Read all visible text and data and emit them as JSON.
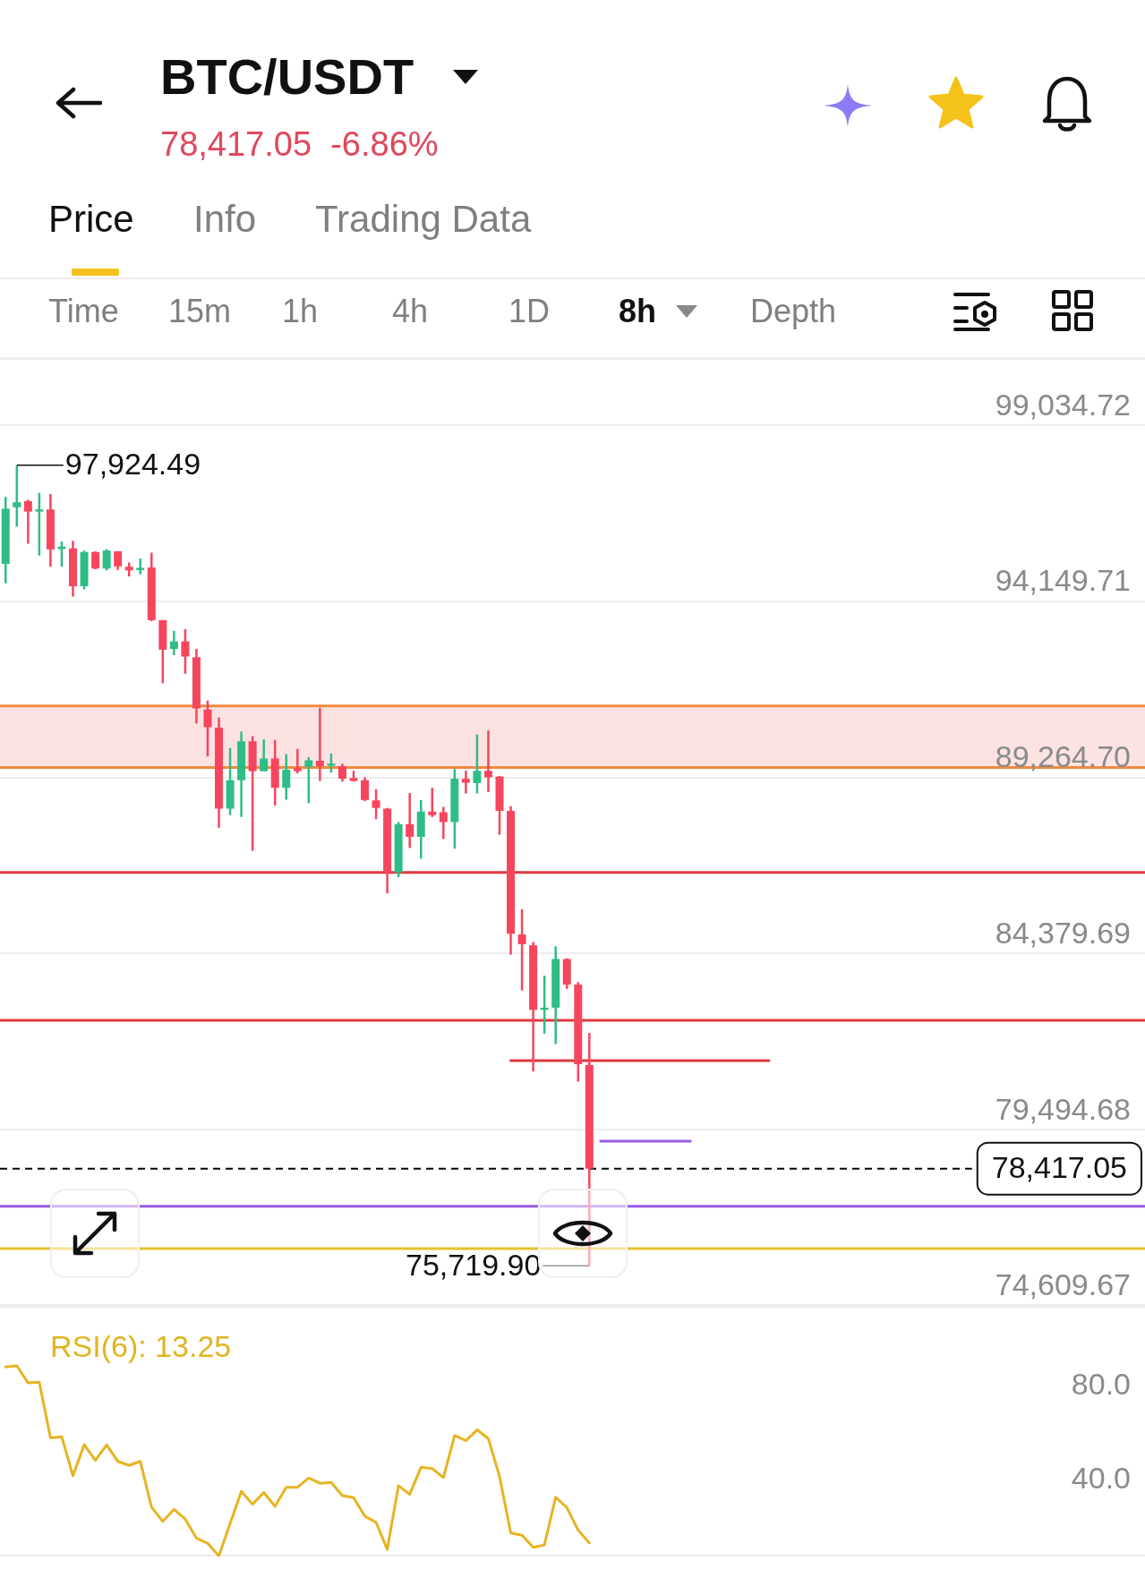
{
  "chart_data": [
    {
      "type": "candlestick",
      "title": "BTC/USDT",
      "subtitle": "78,417.05  -6.86%",
      "annotations": [
        "Price",
        "Info",
        "Trading Data",
        "Time",
        "15m",
        "1h",
        "4h",
        "1D",
        "8h",
        "Depth",
        "97,924.49",
        "75,719.90"
      ],
      "categories": [
        null,
        null,
        null,
        null,
        null,
        null,
        null,
        null,
        null,
        null,
        null,
        null,
        null,
        null,
        null,
        null,
        null,
        null,
        null,
        null,
        null,
        null,
        null,
        null,
        null,
        null,
        null,
        null,
        null,
        null,
        null,
        null,
        null,
        null,
        null,
        null,
        null,
        null,
        null,
        null,
        null,
        null,
        null,
        null,
        null,
        null,
        null,
        null,
        null,
        null,
        null,
        null,
        null,
        null,
        null,
        null,
        null,
        null,
        null,
        null,
        null,
        null,
        null,
        null,
        null,
        null,
        null,
        null,
        null,
        null,
        null,
        null,
        null,
        null,
        null,
        null,
        null,
        null,
        null,
        null,
        null,
        null,
        null,
        null,
        null,
        null,
        null,
        null,
        null,
        null,
        null,
        null,
        null,
        null,
        null,
        null,
        null,
        null,
        null,
        null,
        null,
        null
      ],
      "ohlc": [
        [
          95190,
          97050,
          94650,
          96720
        ],
        [
          96760,
          97924.49,
          96220,
          96900
        ],
        [
          96930,
          96970,
          95750,
          96640
        ],
        [
          96640,
          97160,
          95420,
          96700
        ],
        [
          96700,
          97130,
          95110,
          95590
        ],
        [
          95600,
          95810,
          95110,
          95670
        ],
        [
          95620,
          95830,
          94280,
          94570
        ],
        [
          94570,
          95560,
          94480,
          95520
        ],
        [
          95520,
          95540,
          95040,
          95060
        ],
        [
          95060,
          95600,
          95010,
          95560
        ],
        [
          95540,
          95540,
          95020,
          95120
        ],
        [
          95110,
          95230,
          94840,
          95010
        ],
        [
          95020,
          95340,
          94900,
          95080
        ],
        [
          95090,
          95500,
          93600,
          93630
        ],
        [
          93630,
          93630,
          91880,
          92810
        ],
        [
          92830,
          93330,
          92660,
          93040
        ],
        [
          93040,
          93380,
          92140,
          92620
        ],
        [
          92600,
          92830,
          90760,
          91180
        ],
        [
          91150,
          91400,
          89850,
          90660
        ],
        [
          90650,
          90930,
          87870,
          88400
        ],
        [
          88400,
          90080,
          88220,
          89190
        ],
        [
          89190,
          90540,
          88170,
          90270
        ],
        [
          90270,
          90410,
          87230,
          89440
        ],
        [
          89440,
          90320,
          89440,
          89790
        ],
        [
          89790,
          90310,
          88490,
          88980
        ],
        [
          88980,
          89910,
          88650,
          89480
        ],
        [
          89520,
          90060,
          89380,
          89440
        ],
        [
          89560,
          89830,
          88550,
          89740
        ],
        [
          89730,
          91200,
          89170,
          89580
        ],
        [
          89590,
          89930,
          89400,
          89650
        ],
        [
          89580,
          89650,
          89150,
          89230
        ],
        [
          89250,
          89450,
          89150,
          89170
        ],
        [
          89190,
          89270,
          88610,
          88640
        ],
        [
          88630,
          88940,
          88110,
          88420
        ],
        [
          88400,
          88420,
          86050,
          86630
        ],
        [
          86630,
          88030,
          86500,
          87970
        ],
        [
          87970,
          88830,
          87310,
          87620
        ],
        [
          87620,
          88640,
          87010,
          88320
        ],
        [
          88320,
          88980,
          88170,
          88220
        ],
        [
          88300,
          88450,
          87560,
          88030
        ],
        [
          88030,
          89500,
          87290,
          89230
        ],
        [
          89230,
          89460,
          88820,
          89120
        ],
        [
          89110,
          90460,
          88820,
          89450
        ],
        [
          89450,
          90570,
          88860,
          89270
        ],
        [
          89290,
          89310,
          87680,
          88340
        ],
        [
          88340,
          88470,
          84350,
          84930
        ],
        [
          84910,
          85610,
          83360,
          84640
        ],
        [
          84610,
          84700,
          81110,
          82820
        ],
        [
          82820,
          83770,
          82160,
          82880
        ],
        [
          82880,
          84580,
          81870,
          84230
        ],
        [
          84230,
          84250,
          83400,
          83520
        ],
        [
          83520,
          83590,
          80830,
          81310
        ],
        [
          81290,
          82180,
          75719.9,
          78417.05
        ],
        null,
        null,
        null,
        null,
        null,
        null,
        null,
        null,
        null,
        null,
        null,
        null,
        null,
        null,
        null,
        null,
        null,
        null,
        null,
        null,
        null,
        null,
        null,
        null,
        null,
        null,
        null,
        null,
        null,
        null,
        null,
        null,
        null,
        null,
        null,
        null,
        null,
        null,
        null,
        null,
        null,
        null,
        null,
        null,
        null,
        null,
        null,
        null,
        null
      ],
      "colors": [
        "#2ebd85",
        "#2ebd85",
        "#f6465d",
        "#2ebd85",
        "#f6465d",
        "#2ebd85",
        "#f6465d",
        "#2ebd85",
        "#f6465d",
        "#2ebd85",
        "#f6465d",
        "#f6465d",
        "#2ebd85",
        "#f6465d",
        "#f6465d",
        "#2ebd85",
        "#f6465d",
        "#f6465d",
        "#f6465d",
        "#f6465d",
        "#2ebd85",
        "#2ebd85",
        "#f6465d",
        "#2ebd85",
        "#f6465d",
        "#2ebd85",
        "#f6465d",
        "#2ebd85",
        "#f6465d",
        "#2ebd85",
        "#f6465d",
        "#f6465d",
        "#f6465d",
        "#f6465d",
        "#f6465d",
        "#2ebd85",
        "#f6465d",
        "#2ebd85",
        "#f6465d",
        "#f6465d",
        "#2ebd85",
        "#f6465d",
        "#2ebd85",
        "#f6465d",
        "#f6465d",
        "#f6465d",
        "#f6465d",
        "#f6465d",
        "#2ebd85",
        "#2ebd85",
        "#f6465d",
        "#f6465d",
        "#f6465d",
        null,
        null,
        null,
        null,
        null,
        null,
        null,
        null,
        null,
        null,
        null,
        null,
        null,
        null,
        null,
        null,
        null,
        null,
        null,
        null,
        null,
        null,
        null,
        null,
        null,
        null,
        null,
        null,
        null,
        null,
        null,
        null,
        null,
        null,
        null,
        null,
        null,
        null,
        null,
        null,
        null,
        null,
        null,
        null,
        null,
        null,
        null,
        null,
        null
      ],
      "series": [
        {
          "type": "line",
          "color": "#e0393e",
          "values": [
            null,
            null,
            null,
            null,
            null,
            null,
            null,
            null,
            null,
            null,
            null,
            null,
            null,
            null,
            null,
            null,
            null,
            null,
            null,
            null,
            null,
            null,
            null,
            null,
            null,
            null,
            null,
            null,
            null,
            null,
            null,
            null,
            null,
            null,
            null,
            null,
            null,
            null,
            null,
            null,
            null,
            null,
            null,
            null,
            null,
            81410,
            81410,
            81410,
            81410,
            81410,
            81410,
            81410,
            81410,
            81410,
            81410,
            81410,
            81410,
            81410,
            81410,
            81410,
            81410,
            81410,
            81410,
            81410,
            81410,
            81410,
            81410,
            81410,
            81410,
            null,
            null,
            null,
            null,
            null,
            null,
            null,
            null,
            null,
            null,
            null,
            null,
            null,
            null,
            null,
            null,
            null,
            null,
            null,
            null,
            null,
            null,
            null,
            null,
            null,
            null,
            null,
            null,
            null,
            null,
            null,
            null,
            null
          ]
        },
        {
          "type": "line",
          "color": "#9a5ce6",
          "values": [
            null,
            null,
            null,
            null,
            null,
            null,
            null,
            null,
            null,
            null,
            null,
            null,
            null,
            null,
            null,
            null,
            null,
            null,
            null,
            null,
            null,
            null,
            null,
            null,
            null,
            null,
            null,
            null,
            null,
            null,
            null,
            null,
            null,
            null,
            null,
            null,
            null,
            null,
            null,
            null,
            null,
            null,
            null,
            null,
            null,
            null,
            null,
            null,
            null,
            null,
            null,
            null,
            null,
            79180,
            79180,
            79180,
            79180,
            79180,
            79180,
            79180,
            79180,
            79180,
            null,
            null,
            null,
            null,
            null,
            null,
            null,
            null,
            null,
            null,
            null,
            null,
            null,
            null,
            null,
            null,
            null,
            null,
            null,
            null,
            null,
            null,
            null,
            null,
            null,
            null,
            null,
            null,
            null,
            null,
            null,
            null,
            null,
            null,
            null,
            null,
            null,
            null,
            null,
            null
          ]
        }
      ],
      "bands": [
        {
          "axis": "y",
          "from": 89540,
          "to": 91250,
          "color": "#fde2e2"
        }
      ],
      "ref_lines": [
        {
          "axis": "y",
          "value": 91250,
          "color": "#f08a3c"
        },
        {
          "axis": "y",
          "value": 89540,
          "color": "#f08a3c"
        },
        {
          "axis": "y",
          "value": 86630,
          "color": "#e0393e"
        },
        {
          "axis": "y",
          "value": 82530,
          "color": "#e0393e"
        },
        {
          "axis": "y",
          "value": 77370,
          "color": "#9a5ce6"
        },
        {
          "axis": "y",
          "value": 76200,
          "color": "#e6c229"
        },
        {
          "axis": "y",
          "value": 78417.05,
          "label": "78,417.05",
          "color": "#000000",
          "line_style": "dashed"
        }
      ],
      "ylim": [
        74609.67,
        100900
      ],
      "yticks": [
        {
          "value": 99034.72,
          "label": "99,034.72"
        },
        {
          "value": 94149.71,
          "label": "94,149.71"
        },
        {
          "value": 89264.7,
          "label": "89,264.70"
        },
        {
          "value": 84379.69,
          "label": "84,379.69"
        },
        {
          "value": 79494.68,
          "label": "79,494.68"
        },
        {
          "value": 74609.67,
          "label": "74,609.67"
        }
      ],
      "grid": "y",
      "tick_labels": "y"
    },
    {
      "type": "line",
      "title": "RSI(6): 13.25",
      "categories": [
        null,
        null,
        null,
        null,
        null,
        null,
        null,
        null,
        null,
        null,
        null,
        null,
        null,
        null,
        null,
        null,
        null,
        null,
        null,
        null,
        null,
        null,
        null,
        null,
        null,
        null,
        null,
        null,
        null,
        null,
        null,
        null,
        null,
        null,
        null,
        null,
        null,
        null,
        null,
        null,
        null,
        null,
        null,
        null,
        null,
        null,
        null,
        null,
        null,
        null,
        null,
        null,
        null,
        null,
        null,
        null,
        null,
        null,
        null,
        null,
        null,
        null,
        null,
        null,
        null,
        null,
        null,
        null,
        null,
        null,
        null,
        null,
        null,
        null,
        null,
        null,
        null,
        null,
        null,
        null,
        null,
        null,
        null,
        null,
        null,
        null,
        null,
        null,
        null,
        null,
        null,
        null,
        null,
        null,
        null,
        null,
        null,
        null,
        null,
        null,
        null,
        null
      ],
      "color": "#e6b422",
      "values": [
        88.0,
        88.5,
        81.3,
        81.6,
        57.9,
        58.4,
        41.8,
        55.0,
        48.3,
        54.9,
        47.9,
        46.2,
        47.9,
        28.5,
        22.4,
        27.5,
        23.4,
        15.3,
        13.1,
        7.7,
        21.5,
        35.2,
        29.7,
        34.7,
        28.8,
        36.9,
        36.9,
        40.8,
        38.6,
        39.0,
        33.4,
        32.5,
        24.6,
        22.0,
        10.5,
        37.6,
        33.9,
        45.4,
        44.9,
        41.0,
        58.9,
        56.7,
        61.3,
        57.6,
        41.5,
        17.5,
        16.5,
        11.4,
        12.4,
        32.7,
        28.3,
        18.7,
        13.25,
        null,
        null,
        null,
        null,
        null,
        null,
        null,
        null,
        null,
        null,
        null,
        null,
        null,
        null,
        null,
        null,
        null,
        null,
        null,
        null,
        null,
        null,
        null,
        null,
        null,
        null,
        null,
        null,
        null,
        null,
        null,
        null,
        null,
        null,
        null,
        null,
        null,
        null,
        null,
        null,
        null,
        null,
        null,
        null,
        null,
        null,
        null,
        null,
        null
      ],
      "ylim": [
        7.5,
        114
      ],
      "yticks": [
        {
          "value": 80,
          "label": "80.0"
        },
        {
          "value": 40,
          "label": "40.0"
        }
      ],
      "tick_labels": "y"
    }
  ]
}
